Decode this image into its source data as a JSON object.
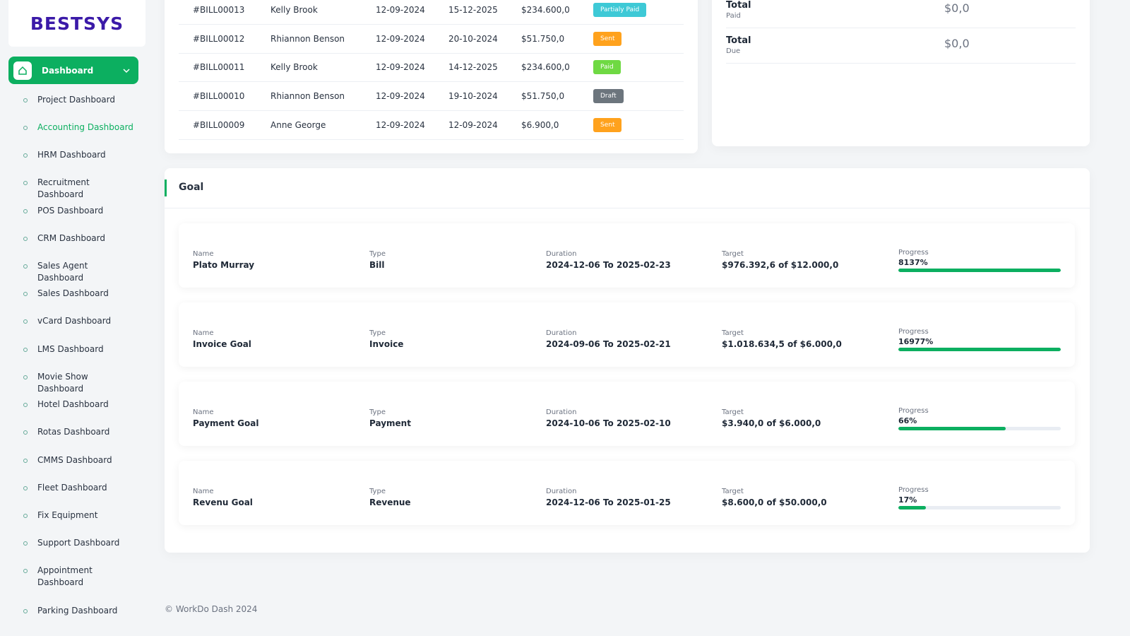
{
  "brand": "BESTSYS",
  "sidebar": {
    "active": "Dashboard",
    "items": [
      "Project Dashboard",
      "Accounting Dashboard",
      "HRM Dashboard",
      "Recruitment Dashboard",
      "POS Dashboard",
      "CRM Dashboard",
      "Sales Agent Dashboard",
      "Sales Dashboard",
      "vCard Dashboard",
      "LMS Dashboard",
      "Movie Show Dashboard",
      "Hotel Dashboard",
      "Rotas Dashboard",
      "CMMS Dashboard",
      "Fleet Dashboard",
      "Fix Equipment",
      "Support Dashboard",
      "Appointment Dashboard",
      "Parking Dashboard"
    ],
    "current": "Accounting Dashboard"
  },
  "bills": {
    "rows": [
      {
        "id": "#BILL00013",
        "customer": "Kelly Brook",
        "bill_date": "12-09-2024",
        "due_date": "15-12-2025",
        "amount": "$234.600,0",
        "status": "Partialy Paid",
        "status_color": "#3ec9d6"
      },
      {
        "id": "#BILL00012",
        "customer": "Rhiannon Benson",
        "bill_date": "12-09-2024",
        "due_date": "20-10-2024",
        "amount": "$51.750,0",
        "status": "Sent",
        "status_color": "#ffa21d"
      },
      {
        "id": "#BILL00011",
        "customer": "Kelly Brook",
        "bill_date": "12-09-2024",
        "due_date": "14-12-2025",
        "amount": "$234.600,0",
        "status": "Paid",
        "status_color": "#6fd943"
      },
      {
        "id": "#BILL00010",
        "customer": "Rhiannon Benson",
        "bill_date": "12-09-2024",
        "due_date": "19-10-2024",
        "amount": "$51.750,0",
        "status": "Draft",
        "status_color": "#6c757d"
      },
      {
        "id": "#BILL00009",
        "customer": "Anne George",
        "bill_date": "12-09-2024",
        "due_date": "12-09-2024",
        "amount": "$6.900,0",
        "status": "Sent",
        "status_color": "#ffa21d"
      }
    ]
  },
  "totals": [
    {
      "label": "Total",
      "sub": "Paid",
      "value": "$0,0"
    },
    {
      "label": "Total",
      "sub": "Due",
      "value": "$0,0"
    }
  ],
  "goal": {
    "title": "Goal",
    "field_labels": {
      "name": "Name",
      "type": "Type",
      "duration": "Duration",
      "target": "Target",
      "progress": "Progress"
    },
    "items": [
      {
        "name": "Plato Murray",
        "type": "Bill",
        "duration": "2024-12-06 To 2025-02-23",
        "target": "$976.392,6 of $12.000,0",
        "progress": {
          "value": 8137,
          "label": "8137%"
        }
      },
      {
        "name": "Invoice Goal",
        "type": "Invoice",
        "duration": "2024-09-06 To 2025-02-21",
        "target": "$1.018.634,5 of $6.000,0",
        "progress": {
          "value": 16977,
          "label": "16977%"
        }
      },
      {
        "name": "Payment Goal",
        "type": "Payment",
        "duration": "2024-10-06 To 2025-02-10",
        "target": "$3.940,0 of $6.000,0",
        "progress": {
          "value": 66,
          "label": "66%"
        }
      },
      {
        "name": "Revenu Goal",
        "type": "Revenue",
        "duration": "2024-12-06 To 2025-01-25",
        "target": "$8.600,0 of $50.000,0",
        "progress": {
          "value": 17,
          "label": "17%"
        }
      }
    ]
  },
  "footer": "© WorkDo Dash 2024"
}
